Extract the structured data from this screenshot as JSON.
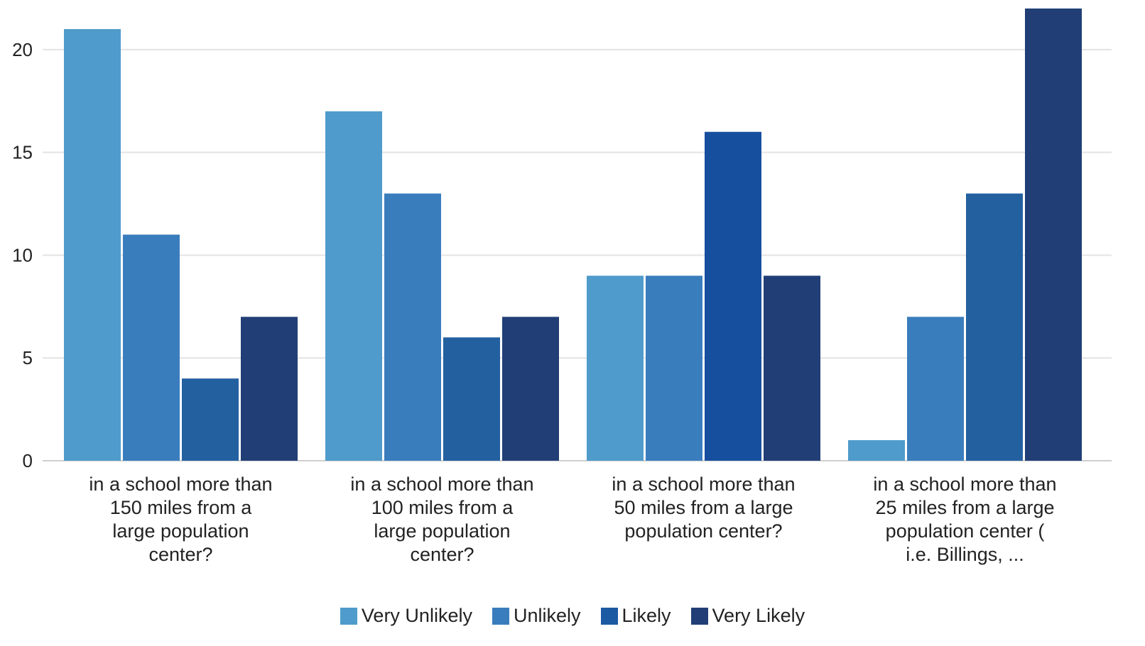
{
  "chart_data": {
    "type": "bar",
    "title": "",
    "xlabel": "",
    "ylabel": "",
    "ylim": [
      0,
      22
    ],
    "yticks": [
      0,
      5,
      10,
      15,
      20
    ],
    "grid": true,
    "legend_position": "bottom",
    "categories": [
      "in a school more than 150 miles from a large population center?",
      "in a school more than 100 miles from a large population center?",
      "in a school more than 50 miles from a large population center?",
      "in a school more than 25 miles from a large population center ( i.e. Billings, ..."
    ],
    "category_lines": [
      [
        "in a school more than",
        "150 miles from a",
        "large population",
        "center?"
      ],
      [
        "in a school more than",
        "100 miles from a",
        "large population",
        "center?"
      ],
      [
        "in a school more than",
        "50 miles from a large",
        "population center?"
      ],
      [
        "in a school more than",
        "25 miles from a large",
        "population center (",
        "i.e. Billings, ..."
      ]
    ],
    "series": [
      {
        "name": "Very Unlikely",
        "color": "#4f9bcb",
        "values": [
          21,
          17,
          9,
          1
        ]
      },
      {
        "name": "Unlikely",
        "color": "#3a7dbd",
        "values": [
          11,
          13,
          9,
          7
        ]
      },
      {
        "name": "Likely",
        "colors": [
          "#2360a0",
          "#2360a0",
          "#174f9f",
          "#2360a0"
        ],
        "legend_color": "#1c5aa3",
        "values": [
          4,
          6,
          16,
          13
        ]
      },
      {
        "name": "Very Likely",
        "color": "#213f76",
        "values": [
          7,
          7,
          9,
          22
        ]
      }
    ]
  }
}
